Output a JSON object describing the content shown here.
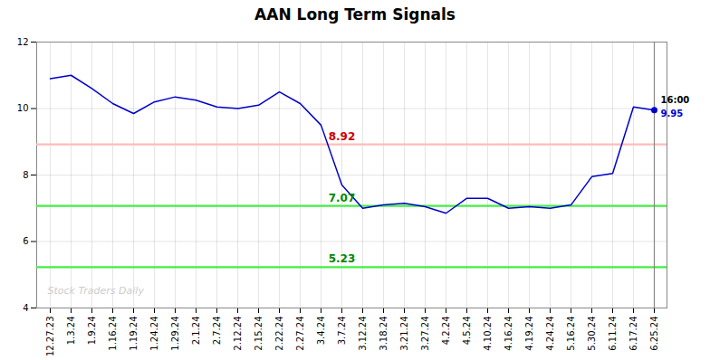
{
  "chart_data": {
    "type": "line",
    "title": "AAN Long Term Signals",
    "categories": [
      "12.27.23",
      "1.3.24",
      "1.9.24",
      "1.16.24",
      "1.19.24",
      "1.24.24",
      "1.29.24",
      "2.1.24",
      "2.7.24",
      "2.12.24",
      "2.15.24",
      "2.22.24",
      "2.27.24",
      "3.4.24",
      "3.7.24",
      "3.12.24",
      "3.18.24",
      "3.21.24",
      "3.27.24",
      "4.2.24",
      "4.5.24",
      "4.10.24",
      "4.16.24",
      "4.19.24",
      "4.24.24",
      "5.16.24",
      "5.30.24",
      "6.11.24",
      "6.17.24",
      "6.25.24"
    ],
    "values": [
      10.9,
      11.0,
      10.6,
      10.15,
      9.85,
      10.2,
      10.35,
      10.25,
      10.05,
      10.0,
      10.1,
      10.5,
      10.15,
      9.5,
      7.7,
      7.0,
      7.1,
      7.15,
      7.05,
      6.85,
      7.3,
      7.3,
      7.0,
      7.05,
      7.0,
      7.1,
      7.95,
      8.05,
      10.05,
      9.95
    ],
    "color": "#0000cc",
    "ylim": [
      4,
      12
    ],
    "yticks": [
      4,
      6,
      8,
      10,
      12
    ],
    "grid": true,
    "hlines": [
      {
        "value": 8.92,
        "label": "8.92",
        "color": "#ffbbbb",
        "text_color": "#cc0000"
      },
      {
        "value": 7.07,
        "label": "7.07",
        "color": "#44ee44",
        "text_color": "#008800"
      },
      {
        "value": 5.23,
        "label": "5.23",
        "color": "#44ee44",
        "text_color": "#008800"
      }
    ],
    "last_annotations": [
      {
        "text": "16:00",
        "color": "#000000"
      },
      {
        "text": "9.95",
        "color": "#0000cc"
      }
    ],
    "watermark": "Stock Traders Daily"
  }
}
